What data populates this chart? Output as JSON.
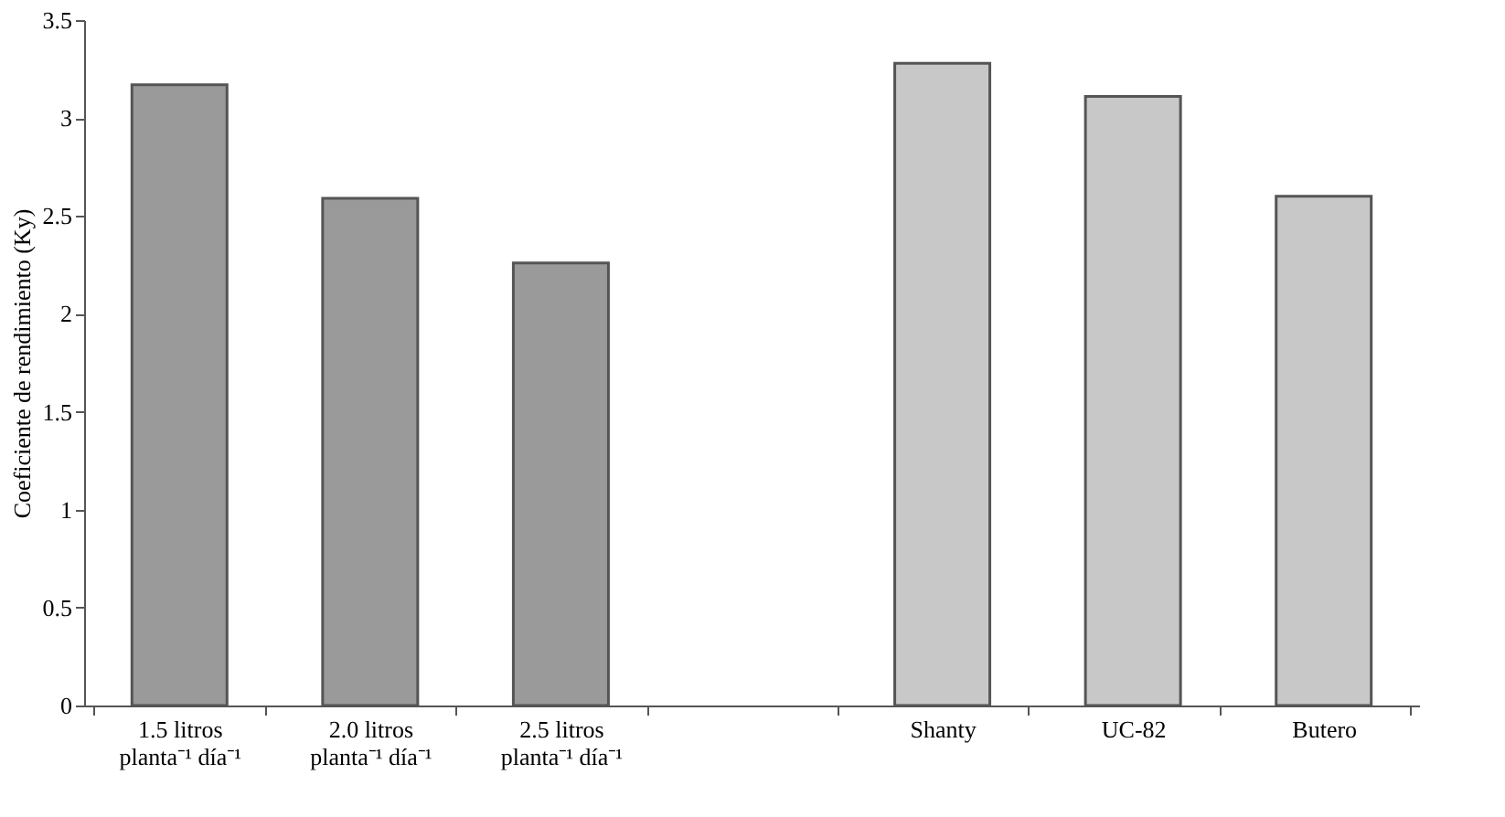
{
  "chart_data": {
    "type": "bar",
    "ylabel": "Coeficiente de rendimiento (Ky)",
    "categories": [
      "1.5 litros planta⁻¹ día⁻¹",
      "2.0 litros planta⁻¹ día⁻¹",
      "2.5 litros planta⁻¹ día⁻¹",
      null,
      "Shanty",
      "UC-82",
      "Butero"
    ],
    "values": [
      3.17,
      2.59,
      2.26,
      null,
      3.28,
      3.11,
      2.6
    ],
    "colors": [
      "#9a9a9a",
      "#9a9a9a",
      "#9a9a9a",
      null,
      "#c8c8c8",
      "#c8c8c8",
      "#c8c8c8"
    ],
    "ylim": [
      0,
      3.5
    ],
    "yticks": [
      0,
      0.5,
      1,
      1.5,
      2,
      2.5,
      3,
      3.5
    ],
    "grid": false
  }
}
